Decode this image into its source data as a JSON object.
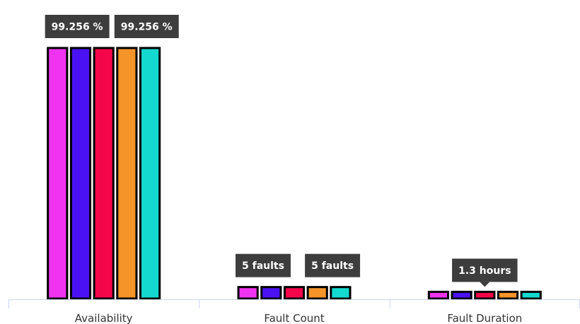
{
  "chart_data": {
    "type": "bar",
    "title": "",
    "xlabel": "",
    "ylabel": "",
    "grid": false,
    "legend": "none",
    "categories": [
      "Availability",
      "Fault Count",
      "Fault Duration"
    ],
    "series": [
      {
        "color": "#f033f0",
        "values": [
          1.0,
          0.046,
          0.027
        ]
      },
      {
        "color": "#4a12f2",
        "values": [
          1.0,
          0.046,
          0.027
        ]
      },
      {
        "color": "#f5054a",
        "values": [
          1.0,
          0.046,
          0.027
        ]
      },
      {
        "color": "#f59429",
        "values": [
          1.0,
          0.046,
          0.027
        ]
      },
      {
        "color": "#14d9cf",
        "values": [
          1.0,
          0.046,
          0.027
        ]
      }
    ],
    "ylim": [
      0,
      1.0
    ],
    "tooltips": [
      {
        "category": 0,
        "series": 0,
        "text": "99.256 %",
        "pointer": false
      },
      {
        "category": 0,
        "series": 3,
        "text": "99.256 %",
        "pointer": false
      },
      {
        "category": 1,
        "series": 0,
        "text": "5 faults",
        "pointer": false
      },
      {
        "category": 1,
        "series": 3,
        "text": "5 faults",
        "pointer": false
      },
      {
        "category": 2,
        "series": 2,
        "text": "1.3 hours",
        "pointer": true
      }
    ],
    "colors": {
      "axis": "#ccd6eb",
      "tooltip_bg": "#3d3d3d",
      "bar_border": "#000000"
    }
  }
}
